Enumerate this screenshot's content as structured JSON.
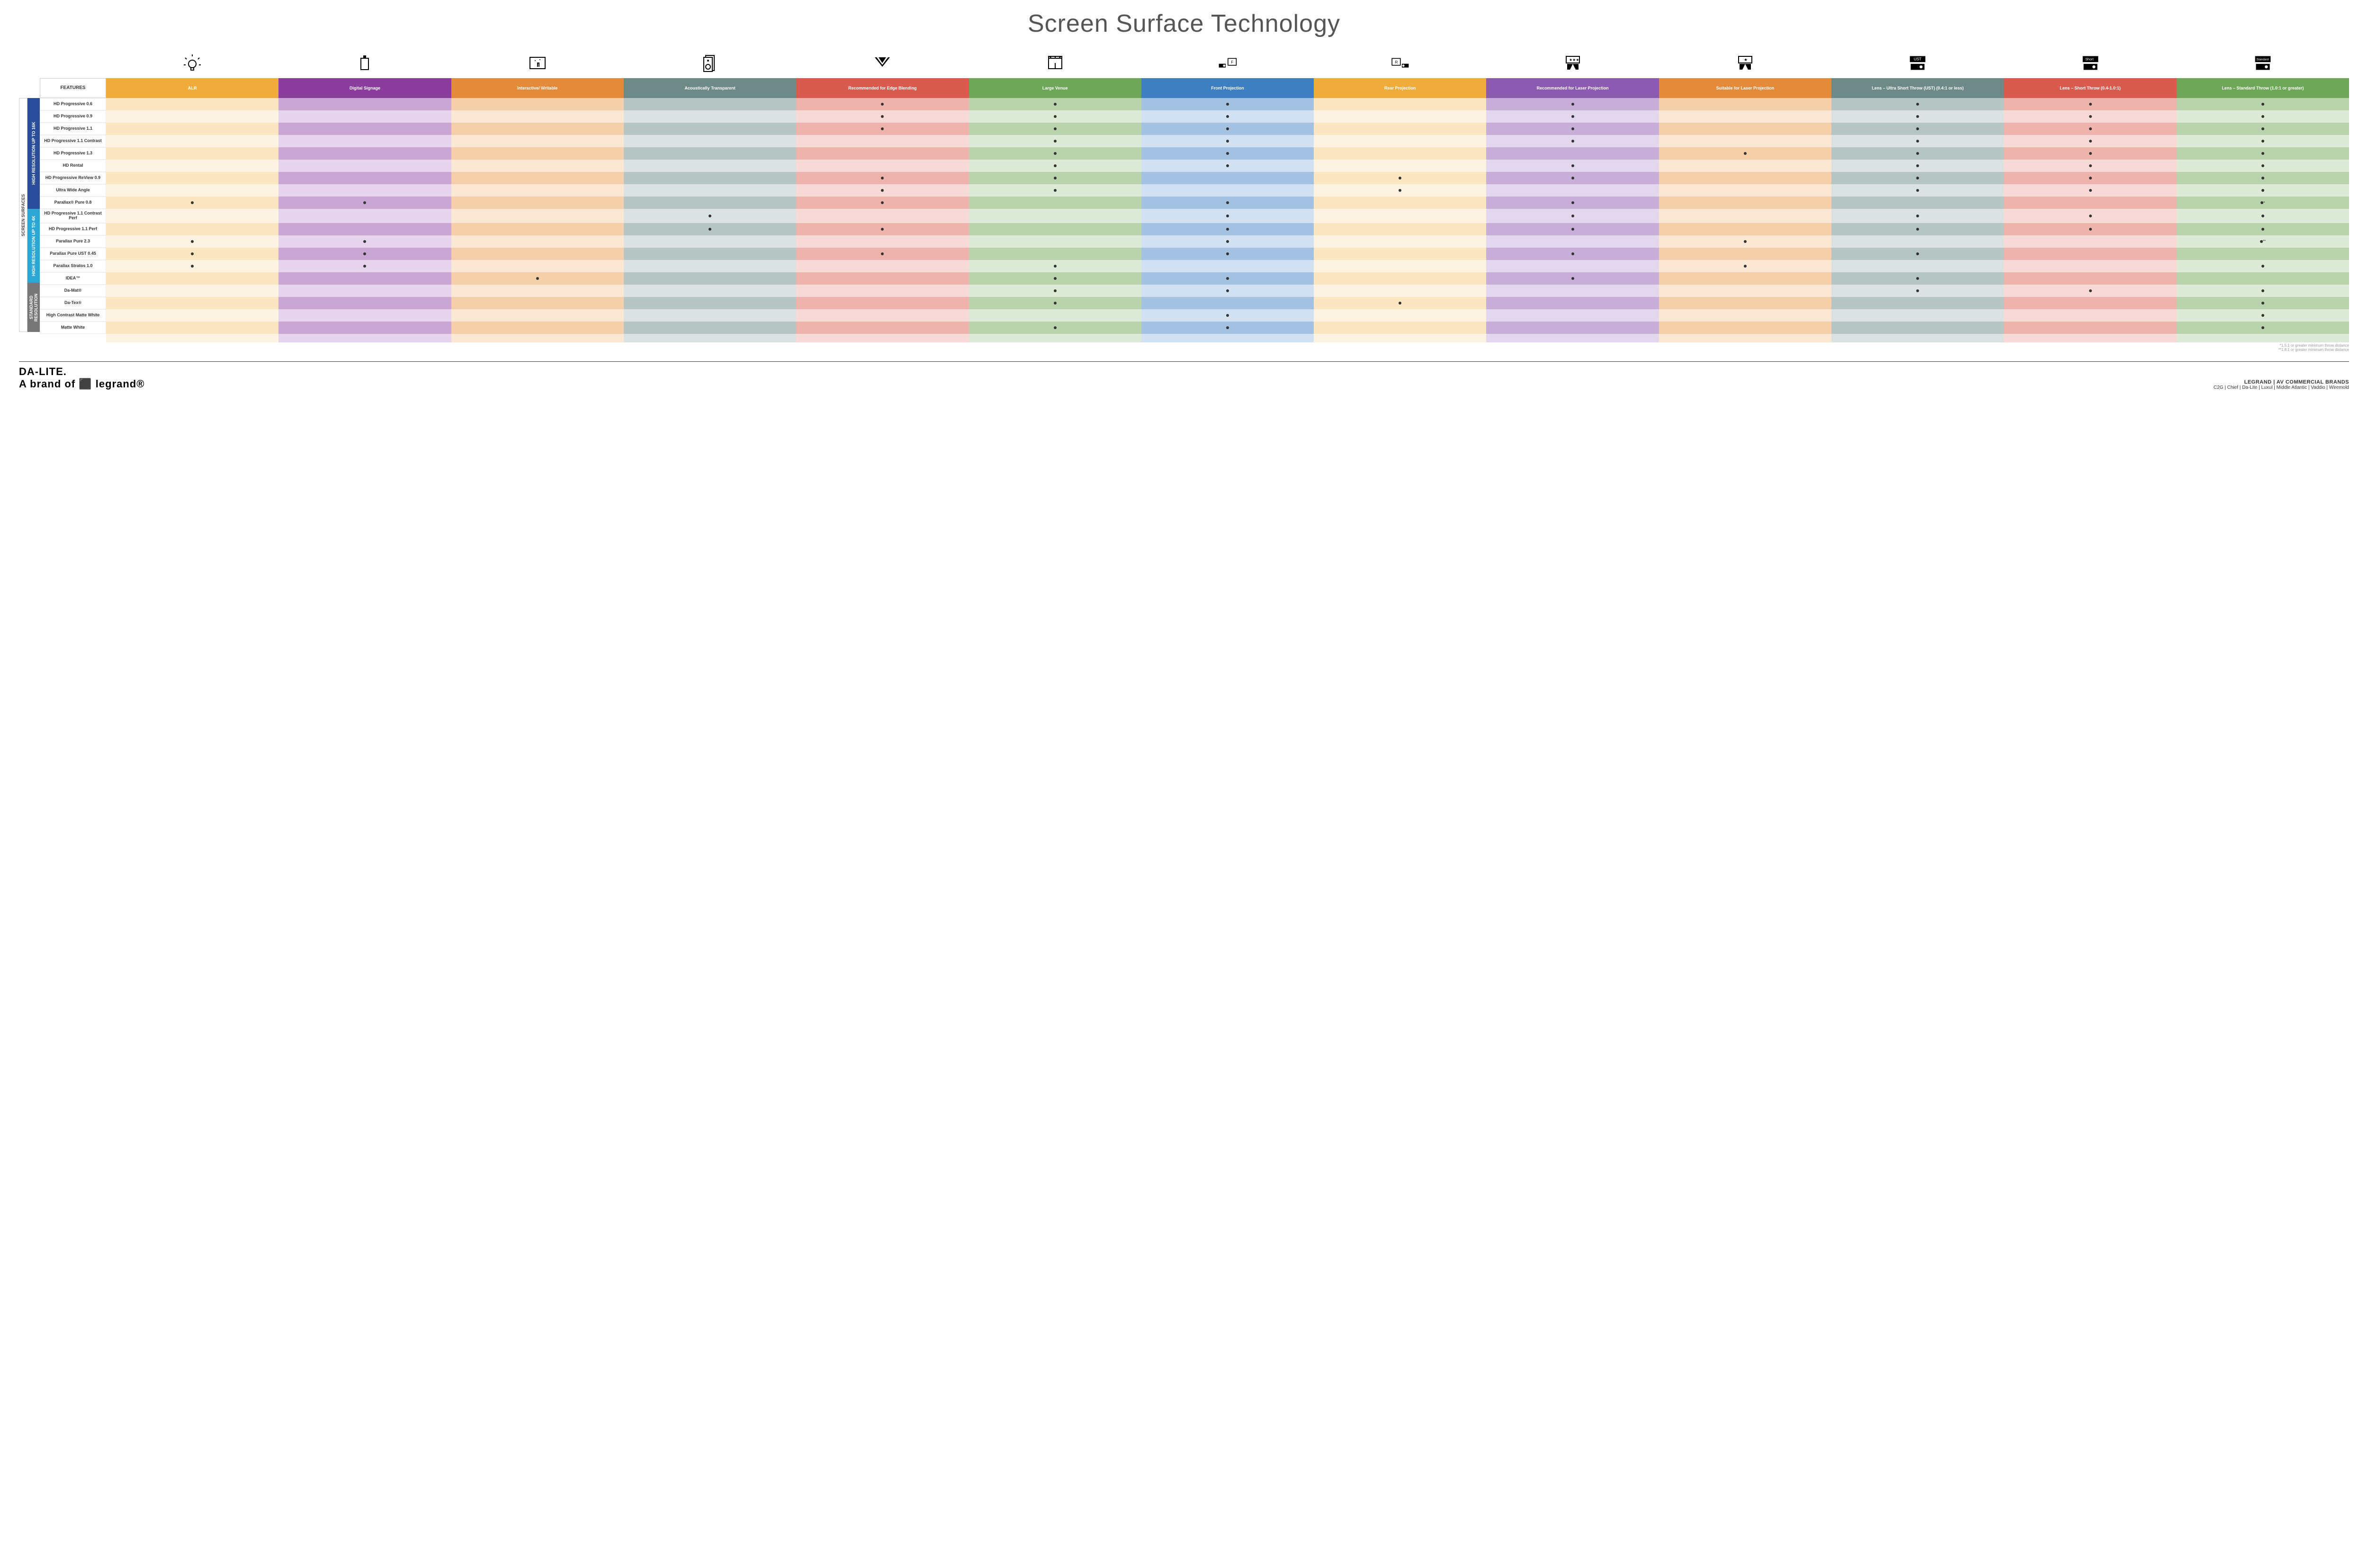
{
  "title": "Screen Surface Technology",
  "featuresHeader": "FEATURES",
  "columns": [
    {
      "label": "ALR",
      "color": "#f0ac3a",
      "light": "#fbe6c2",
      "lighter": "#fdf3e2"
    },
    {
      "label": "Digital Signage",
      "color": "#8a3d9c",
      "light": "#c9a6d3",
      "lighter": "#e5d4eb"
    },
    {
      "label": "Interactive/ Writable",
      "color": "#e38b3a",
      "light": "#f4cfa9",
      "lighter": "#fae8d5"
    },
    {
      "label": "Acoustically Transparent",
      "color": "#6d8a87",
      "light": "#b5c5c3",
      "lighter": "#dbe3e2"
    },
    {
      "label": "Recommended for Edge Blending",
      "color": "#d95b4f",
      "light": "#eeb3ad",
      "lighter": "#f7dad7"
    },
    {
      "label": "Large Venue",
      "color": "#6fa758",
      "light": "#b9d4ac",
      "lighter": "#ddead6"
    },
    {
      "label": "Front Projection",
      "color": "#3d7fc0",
      "light": "#a3c2e2",
      "lighter": "#d2e1f1"
    },
    {
      "label": "Rear Projection",
      "color": "#f0ac3a",
      "light": "#fbe6c2",
      "lighter": "#fdf3e2"
    },
    {
      "label": "Recommended for Laser Projection",
      "color": "#8a5bb0",
      "light": "#c6aed9",
      "lighter": "#e3d7ed"
    },
    {
      "label": "Suitable for Laser Projection",
      "color": "#e38b3a",
      "light": "#f4cfa9",
      "lighter": "#fae8d5"
    },
    {
      "label": "Lens – Ultra Short Throw (UST) (0.4:1 or less)",
      "color": "#6d8a87",
      "light": "#b5c5c3",
      "lighter": "#dbe3e2"
    },
    {
      "label": "Lens – Short Throw (0.4-1.0:1)",
      "color": "#d95b4f",
      "light": "#eeb3ad",
      "lighter": "#f7dad7"
    },
    {
      "label": "Lens – Standard Throw (1.0:1 or greater)",
      "color": "#6fa758",
      "light": "#b9d4ac",
      "lighter": "#ddead6"
    }
  ],
  "outerGroupLabel": "SCREEN SURFACES",
  "groups": [
    {
      "label": "HIGH RESOLUTION UP TO 16K",
      "color": "#2a4d9c",
      "rows": 9
    },
    {
      "label": "HIGH RESOLUTION UP TO 4K",
      "color": "#2aa7d4",
      "rows": 6
    },
    {
      "label": "STANDARD RESOLUTION",
      "color": "#777",
      "rows": 4
    }
  ],
  "rows": [
    {
      "label": "HD Progressive 0.6",
      "cells": [
        "",
        "",
        "",
        "",
        "d",
        "d",
        "d",
        "",
        "d",
        "",
        "d",
        "d",
        "d"
      ]
    },
    {
      "label": "HD Progressive 0.9",
      "cells": [
        "",
        "",
        "",
        "",
        "d",
        "d",
        "d",
        "",
        "d",
        "",
        "d",
        "d",
        "d"
      ]
    },
    {
      "label": "HD Progressive 1.1",
      "cells": [
        "",
        "",
        "",
        "",
        "d",
        "d",
        "d",
        "",
        "d",
        "",
        "d",
        "d",
        "d"
      ]
    },
    {
      "label": "HD Progressive 1.1 Contrast",
      "cells": [
        "",
        "",
        "",
        "",
        "",
        "d",
        "d",
        "",
        "d",
        "",
        "d",
        "d",
        "d"
      ]
    },
    {
      "label": "HD Progressive 1.3",
      "cells": [
        "",
        "",
        "",
        "",
        "",
        "d",
        "d",
        "",
        "",
        "d",
        "d",
        "d",
        "d"
      ]
    },
    {
      "label": "HD Rental",
      "cells": [
        "",
        "",
        "",
        "",
        "",
        "d",
        "d",
        "",
        "d",
        "",
        "d",
        "d",
        "d"
      ]
    },
    {
      "label": "HD Progressive ReView 0.9",
      "cells": [
        "",
        "",
        "",
        "",
        "d",
        "d",
        "",
        "d",
        "d",
        "",
        "d",
        "d",
        "d"
      ]
    },
    {
      "label": "Ultra Wide Angle",
      "cells": [
        "",
        "",
        "",
        "",
        "d",
        "d",
        "",
        "d",
        "",
        "",
        "d",
        "d",
        "d"
      ]
    },
    {
      "label": "Parallax® Pure 0.8",
      "cells": [
        "d",
        "d",
        "",
        "",
        "d",
        "",
        "d",
        "",
        "d",
        "",
        "",
        "",
        "d*"
      ]
    },
    {
      "label": "HD Progressive 1.1 Contrast Perf",
      "cells": [
        "",
        "",
        "",
        "d",
        "",
        "",
        "d",
        "",
        "d",
        "",
        "d",
        "d",
        "d"
      ]
    },
    {
      "label": "HD Progressive 1.1 Perf",
      "cells": [
        "",
        "",
        "",
        "d",
        "d",
        "",
        "d",
        "",
        "d",
        "",
        "d",
        "d",
        "d"
      ]
    },
    {
      "label": "Parallax Pure 2.3",
      "cells": [
        "d",
        "d",
        "",
        "",
        "",
        "",
        "d",
        "",
        "",
        "d",
        "",
        "",
        "d**"
      ]
    },
    {
      "label": "Parallax Pure UST 0.45",
      "cells": [
        "d",
        "d",
        "",
        "",
        "d",
        "",
        "d",
        "",
        "d",
        "",
        "d",
        "",
        ""
      ]
    },
    {
      "label": "Parallax Stratos 1.0",
      "cells": [
        "d",
        "d",
        "",
        "",
        "",
        "d",
        "",
        "",
        "",
        "d",
        "",
        "",
        "d"
      ]
    },
    {
      "label": "IDEA™",
      "cells": [
        "",
        "",
        "d",
        "",
        "",
        "d",
        "d",
        "",
        "d",
        "",
        "d",
        "",
        ""
      ]
    },
    {
      "label": "Da-Mat®",
      "cells": [
        "",
        "",
        "",
        "",
        "",
        "d",
        "d",
        "",
        "",
        "",
        "d",
        "d",
        "d"
      ]
    },
    {
      "label": "Da-Tex®",
      "cells": [
        "",
        "",
        "",
        "",
        "",
        "d",
        "",
        "d",
        "",
        "",
        "",
        "",
        "d"
      ]
    },
    {
      "label": "High Contrast Matte White",
      "cells": [
        "",
        "",
        "",
        "",
        "",
        "",
        "d",
        "",
        "",
        "",
        "",
        "",
        "d"
      ]
    },
    {
      "label": "Matte White",
      "cells": [
        "",
        "",
        "",
        "",
        "",
        "d",
        "d",
        "",
        "",
        "",
        "",
        "",
        "d"
      ]
    }
  ],
  "footnotes": [
    "*1.5:1 or greater minimum throw distance",
    "**1.8:1 or greater minimum throw distance"
  ],
  "footer": {
    "logo": "DA-LITE.",
    "logoSub": "A brand of ⬛ legrand®",
    "brandsTitle": "LEGRAND | AV COMMERCIAL BRANDS",
    "brandsList": "C2G  |  Chief  |  Da-Lite  |  Luxul  |  Middle Atlantic  |  Vaddio  |  Wiremold"
  },
  "icons": [
    "bulb",
    "signage",
    "touch",
    "speaker",
    "venue",
    "rigging",
    "front",
    "rear",
    "laser1",
    "laser2",
    "ust",
    "short",
    "standard"
  ]
}
